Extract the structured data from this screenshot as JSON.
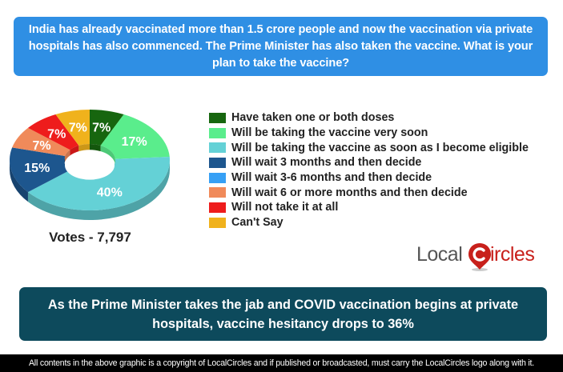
{
  "question": "India has already vaccinated more than 1.5 crore people and now the vaccination via private hospitals has also commenced. The Prime Minister has also taken the vaccine. What is your plan to take the vaccine?",
  "votes_label": "Votes - 7,797",
  "legend": [
    {
      "label": "Have taken one or both doses",
      "color": "#17660f"
    },
    {
      "label": "Will be taking the vaccine very soon",
      "color": "#5aed8c"
    },
    {
      "label": "Will be taking the vaccine as soon as I become eligible",
      "color": "#64d1d6"
    },
    {
      "label": "Will wait 3 months and then decide",
      "color": "#1d568e"
    },
    {
      "label": "Will wait 3-6 months and then decide",
      "color": "#36a0f5"
    },
    {
      "label": "Will wait 6 or more months and then decide",
      "color": "#f08a5a"
    },
    {
      "label": "Will not take it at all",
      "color": "#ee1c1c"
    },
    {
      "label": "Can't Say",
      "color": "#f0b21c"
    }
  ],
  "logo": {
    "part1": "Local",
    "part2": "ircles"
  },
  "summary": "As the Prime Minister takes the jab and COVID vaccination begins at private hospitals, vaccine hesitancy drops to 36%",
  "footer": "All contents in the above graphic is a copyright of LocalCircles and if published or broadcasted, must carry the LocalCircles logo along with it.",
  "chart_data": {
    "type": "pie",
    "title": "India has already vaccinated more than 1.5 crore people and now the vaccination via private hospitals has also commenced. The Prime Minister has also taken the vaccine. What is your plan to take the vaccine?",
    "categories": [
      "Have taken one or both doses",
      "Will be taking the vaccine very soon",
      "Will be taking the vaccine as soon as I become eligible",
      "Will wait 3 months and then decide",
      "Will wait 3-6 months and then decide",
      "Will wait 6 or more months and then decide",
      "Will not take it at all",
      "Can't Say"
    ],
    "values": [
      7,
      17,
      40,
      15,
      0,
      7,
      7,
      7
    ],
    "labels": [
      "7%",
      "17%",
      "40%",
      "15%",
      "",
      "7%",
      "7%",
      "7%"
    ],
    "colors": [
      "#17660f",
      "#5aed8c",
      "#64d1d6",
      "#1d568e",
      "#36a0f5",
      "#f08a5a",
      "#ee1c1c",
      "#f0b21c"
    ],
    "total_votes": 7797,
    "legend_position": "right",
    "style": "3d-donut"
  }
}
